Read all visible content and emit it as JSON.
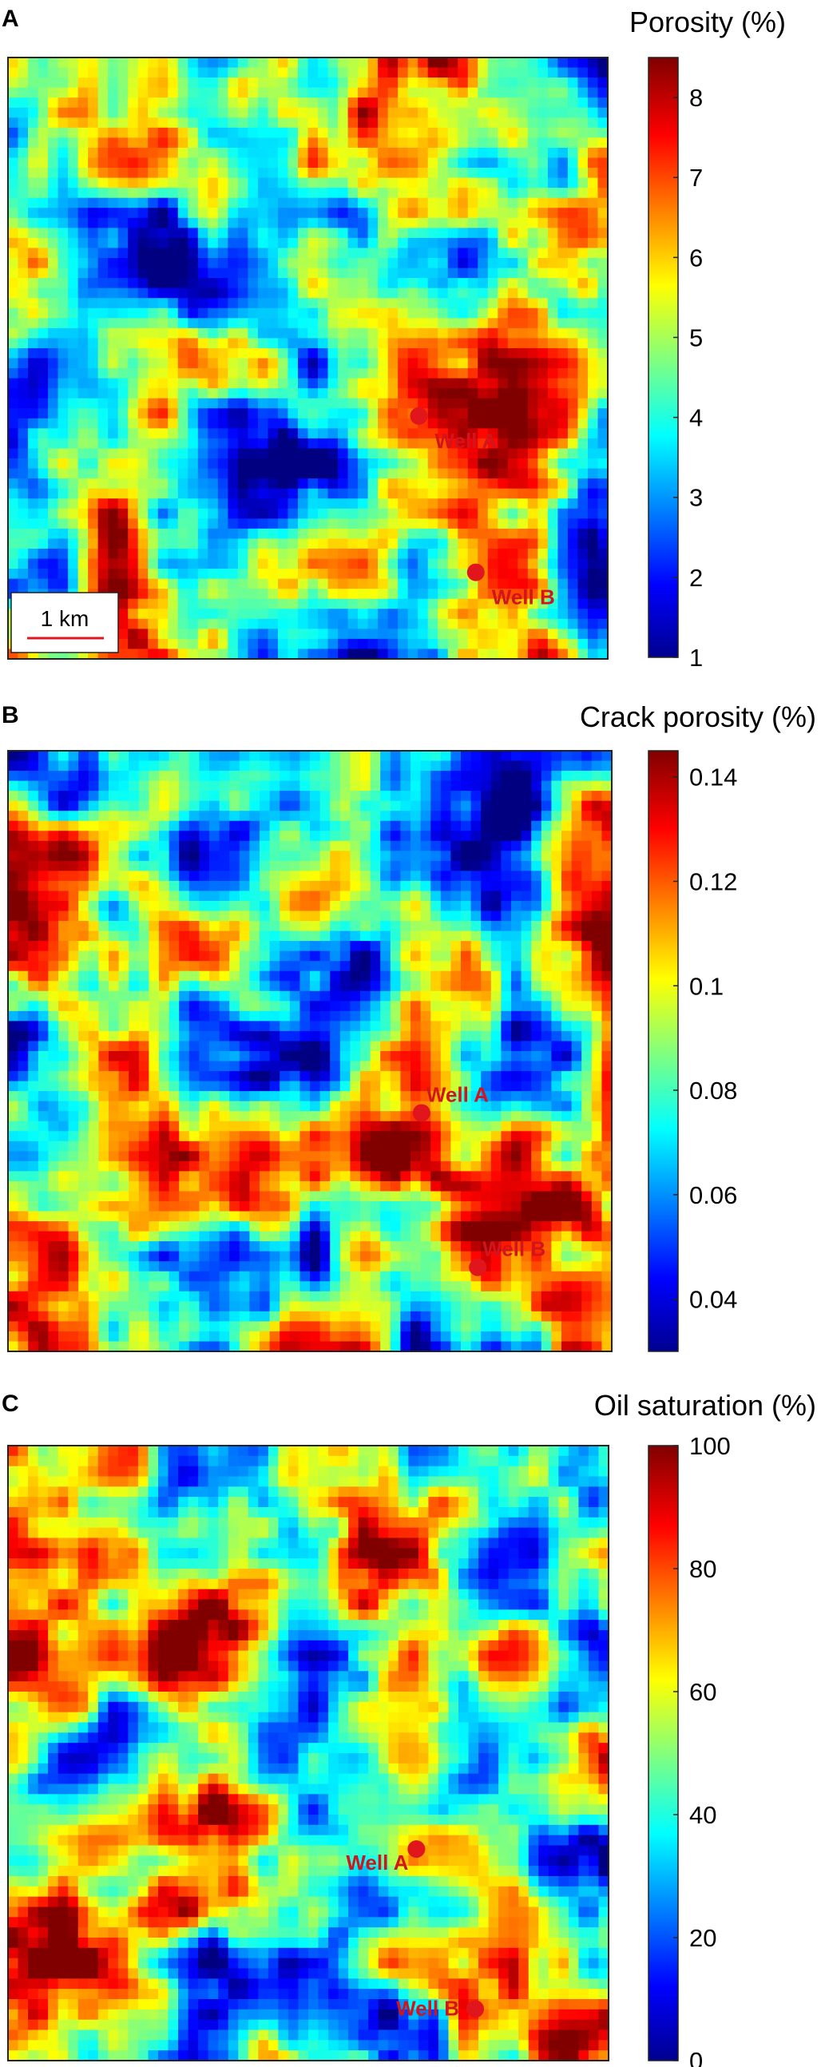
{
  "colors": {
    "well_marker": "#e0161c",
    "well_label": "#d0161c",
    "scale_bar": "#e0161c",
    "colormap": [
      "#00008f",
      "#0000ff",
      "#00ffff",
      "#ffff00",
      "#ff0000",
      "#800000"
    ]
  },
  "chart_data": [
    {
      "type": "heatmap",
      "panel": "A",
      "title": "Porosity (%)",
      "colorbar": {
        "range": [
          1,
          8.5
        ],
        "ticks": [
          "8",
          "7",
          "6",
          "5",
          "4",
          "3",
          "2",
          "1"
        ]
      },
      "wells": [
        {
          "name": "Well A",
          "x": 0.685,
          "y": 0.596
        },
        {
          "name": "Well B",
          "x": 0.78,
          "y": 0.856
        }
      ],
      "scale_bar": "1 km",
      "seed": 11
    },
    {
      "type": "heatmap",
      "panel": "B",
      "title": "Crack porosity (%)",
      "colorbar": {
        "range": [
          0.03,
          0.145
        ],
        "ticks": [
          "0.14",
          "0.12",
          "0.1",
          "0.08",
          "0.06",
          "0.04"
        ]
      },
      "wells": [
        {
          "name": "Well A",
          "x": 0.685,
          "y": 0.603
        },
        {
          "name": "Well B",
          "x": 0.778,
          "y": 0.86
        }
      ],
      "seed": 23
    },
    {
      "type": "heatmap",
      "panel": "C",
      "title": "Oil saturation (%)",
      "colorbar": {
        "range": [
          0,
          100
        ],
        "ticks": [
          "100",
          "80",
          "60",
          "40",
          "20",
          "0"
        ]
      },
      "wells": [
        {
          "name": "Well A",
          "x": 0.68,
          "y": 0.656
        },
        {
          "name": "Well B",
          "x": 0.778,
          "y": 0.916
        }
      ],
      "seed": 37
    }
  ]
}
